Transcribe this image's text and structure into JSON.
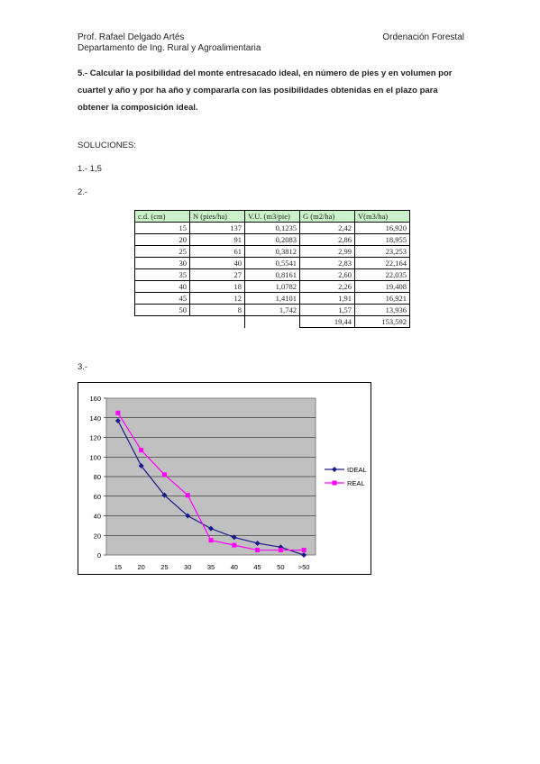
{
  "header": {
    "author": "Prof. Rafael Delgado Artés",
    "department": "Departamento de Ing. Rural y Agroalimentaria",
    "subject": "Ordenación Forestal"
  },
  "question": "5.- Calcular la posibilidad del monte entresacado ideal, en número de pies y en volumen por cuartel y año y por ha año y compararla con las posibilidades obtenidas en el plazo para obtener la composición ideal.",
  "solutions_label": "SOLUCIONES:",
  "answer1": "1.- 1,5",
  "answer2_label": "2.-",
  "answer3_label": "3.-",
  "table": {
    "headers": [
      "c.d. (cm)",
      "N (pies/ha)",
      "V.U. (m3/pie)",
      "G (m2/ha)",
      "V(m3/ha)"
    ],
    "rows": [
      [
        "15",
        "137",
        "0,1235",
        "2,42",
        "16,920"
      ],
      [
        "20",
        "91",
        "0,2083",
        "2,86",
        "18,955"
      ],
      [
        "25",
        "61",
        "0,3812",
        "2,99",
        "23,253"
      ],
      [
        "30",
        "40",
        "0,5541",
        "2,83",
        "22,164"
      ],
      [
        "35",
        "27",
        "0,8161",
        "2,60",
        "22,035"
      ],
      [
        "40",
        "18",
        "1,0782",
        "2,26",
        "19,408"
      ],
      [
        "45",
        "12",
        "1,4101",
        "1,91",
        "16,921"
      ],
      [
        "50",
        "8",
        "1,742",
        "1,57",
        "13,936"
      ]
    ],
    "totals": [
      "19,44",
      "153,592"
    ]
  },
  "chart_data": {
    "type": "line",
    "categories": [
      "15",
      "20",
      "25",
      "30",
      "35",
      "40",
      "45",
      "50",
      ">50"
    ],
    "series": [
      {
        "name": "IDEAL",
        "color": "#1a1a8c",
        "marker": "diamond",
        "values": [
          137,
          91,
          61,
          40,
          27,
          18,
          12,
          8,
          0
        ]
      },
      {
        "name": "REAL",
        "color": "#ff00ff",
        "marker": "square",
        "values": [
          145,
          107,
          82,
          61,
          15,
          10,
          5,
          5,
          5
        ]
      }
    ],
    "yticks": [
      "0",
      "20",
      "40",
      "60",
      "80",
      "100",
      "120",
      "140",
      "160"
    ],
    "ylim": [
      0,
      160
    ],
    "plot_background": "#c0c0c0",
    "grid": true,
    "legend_position": "right"
  }
}
